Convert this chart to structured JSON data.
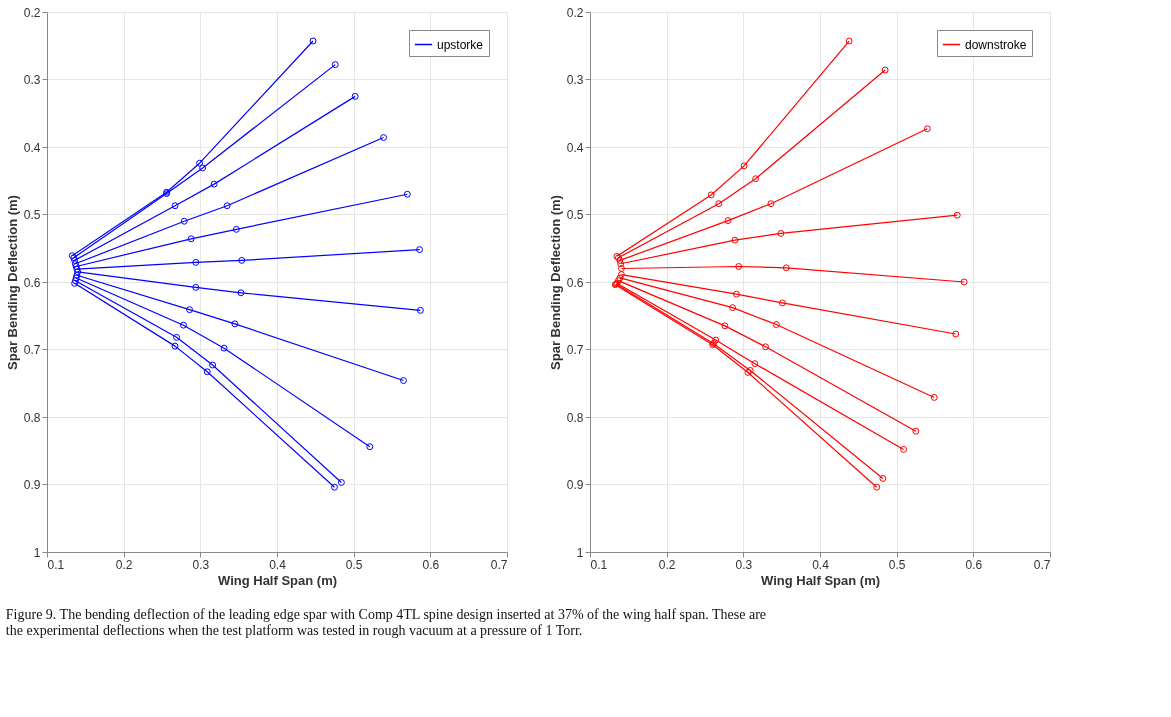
{
  "chart_data": [
    {
      "type": "line",
      "xlabel": "Wing Half Span (m)",
      "ylabel": "Spar Bending Deflection (m)",
      "xlim": [
        0.1,
        0.7
      ],
      "xticks": [
        0.1,
        0.2,
        0.3,
        0.4,
        0.5,
        0.6,
        0.7
      ],
      "ylim": [
        1,
        0.2
      ],
      "yticks": [
        0.2,
        0.3,
        0.4,
        0.5,
        0.6,
        0.7,
        0.8,
        0.9,
        1
      ],
      "grid": true,
      "legend": "top right",
      "marker": "circle",
      "line_style": "solid",
      "annotations": [
        "Figure 9. The bending deflection of the leading edge spar with Comp 4TL spine design inserted at 37% of the wing half span. These are",
        "the experimental deflections when the test platform was tested in rough vacuum at a pressure of 1  Torr."
      ],
      "series": [
        {
          "name": "upstorke",
          "color": "#0000ff",
          "x": [
            0.133,
            0.256,
            0.299,
            0.447,
            null,
            0.135,
            0.256,
            0.303,
            0.476,
            null,
            0.136,
            0.267,
            0.318,
            0.502,
            null,
            0.137,
            0.279,
            0.335,
            0.539,
            null,
            0.138,
            0.288,
            0.347,
            0.57,
            null,
            0.139,
            0.294,
            0.354,
            0.586,
            null,
            0.14,
            0.294,
            0.353,
            0.587,
            null,
            0.139,
            0.286,
            0.345,
            0.565,
            null,
            0.138,
            0.278,
            0.331,
            0.521,
            null,
            0.137,
            0.269,
            0.316,
            0.484,
            null,
            0.136,
            0.267,
            0.309,
            0.475
          ],
          "values": [
            0.561,
            0.467,
            0.424,
            0.243,
            null,
            0.564,
            0.469,
            0.431,
            0.278,
            null,
            0.568,
            0.487,
            0.455,
            0.325,
            null,
            0.573,
            0.51,
            0.487,
            0.386,
            null,
            0.577,
            0.536,
            0.522,
            0.47,
            null,
            0.581,
            0.571,
            0.568,
            0.552,
            null,
            0.585,
            0.608,
            0.616,
            0.642,
            null,
            0.59,
            0.641,
            0.662,
            0.746,
            null,
            0.594,
            0.664,
            0.698,
            0.844,
            null,
            0.598,
            0.682,
            0.723,
            0.897,
            null,
            0.602,
            0.695,
            0.733,
            0.904
          ]
        }
      ]
    },
    {
      "type": "line",
      "xlabel": "Wing Half Span (m)",
      "ylabel": "Spar Bending Deflection (m)",
      "xlim": [
        0.1,
        0.7
      ],
      "xticks": [
        0.1,
        0.2,
        0.3,
        0.4,
        0.5,
        0.6,
        0.7
      ],
      "ylim": [
        1,
        0.2
      ],
      "yticks": [
        0.2,
        0.3,
        0.4,
        0.5,
        0.6,
        0.7,
        0.8,
        0.9,
        1
      ],
      "grid": true,
      "legend": "top right",
      "marker": "circle",
      "line_style": "solid",
      "series": [
        {
          "name": "downstroke",
          "color": "#ff0000",
          "x": [
            0.135,
            0.258,
            0.301,
            0.438,
            null,
            0.137,
            0.268,
            0.316,
            0.485,
            null,
            0.139,
            0.28,
            0.336,
            0.54,
            null,
            0.14,
            0.289,
            0.349,
            0.579,
            null,
            0.141,
            0.294,
            0.356,
            0.588,
            null,
            0.141,
            0.291,
            0.351,
            0.577,
            null,
            0.139,
            0.286,
            0.343,
            0.549,
            null,
            0.137,
            0.276,
            0.329,
            0.525,
            null,
            0.135,
            0.264,
            0.315,
            0.509,
            null,
            0.134,
            0.261,
            0.309,
            0.482,
            null,
            0.133,
            0.26,
            0.306,
            0.474
          ],
          "values": [
            0.562,
            0.471,
            0.428,
            0.243,
            null,
            0.564,
            0.484,
            0.447,
            0.286,
            null,
            0.568,
            0.509,
            0.484,
            0.373,
            null,
            0.573,
            0.538,
            0.528,
            0.501,
            null,
            0.58,
            0.577,
            0.579,
            0.6,
            null,
            0.589,
            0.618,
            0.631,
            0.677,
            null,
            0.594,
            0.638,
            0.663,
            0.771,
            null,
            0.598,
            0.665,
            0.696,
            0.821,
            null,
            0.602,
            0.686,
            0.721,
            0.848,
            null,
            0.603,
            0.691,
            0.731,
            0.891,
            null,
            0.604,
            0.693,
            0.734,
            0.904
          ]
        }
      ]
    }
  ]
}
